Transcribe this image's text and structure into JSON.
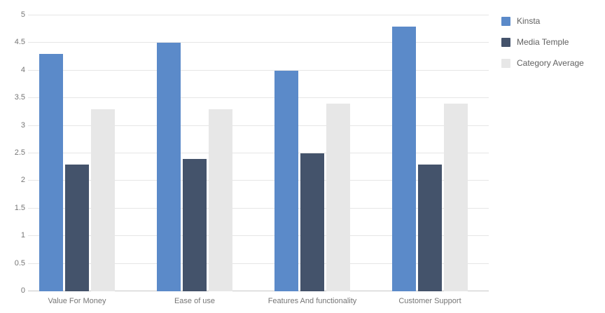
{
  "chart_data": {
    "type": "bar",
    "title": "",
    "categories": [
      "Value For Money",
      "Ease of use",
      "Features And functionality",
      "Customer Support"
    ],
    "series": [
      {
        "name": "Kinsta",
        "color": "#5b8ac9",
        "values": [
          4.3,
          4.5,
          4.0,
          4.8
        ]
      },
      {
        "name": "Media Temple",
        "color": "#44536b",
        "values": [
          2.3,
          2.4,
          2.5,
          2.3
        ]
      },
      {
        "name": "Category Average",
        "color": "#e7e7e7",
        "values": [
          3.3,
          3.3,
          3.4,
          3.4
        ]
      }
    ],
    "xlabel": "",
    "ylabel": "",
    "ylim": [
      0,
      5
    ],
    "yticks": [
      0,
      0.5,
      1,
      1.5,
      2,
      2.5,
      3,
      3.5,
      4,
      4.5,
      5
    ],
    "ytick_labels": [
      "0",
      "0.5",
      "1",
      "1.5",
      "2",
      "2.5",
      "3",
      "3.5",
      "4",
      "4.5",
      "5"
    ],
    "grid": true,
    "legend_position": "right",
    "background_color": "#ffffff"
  }
}
